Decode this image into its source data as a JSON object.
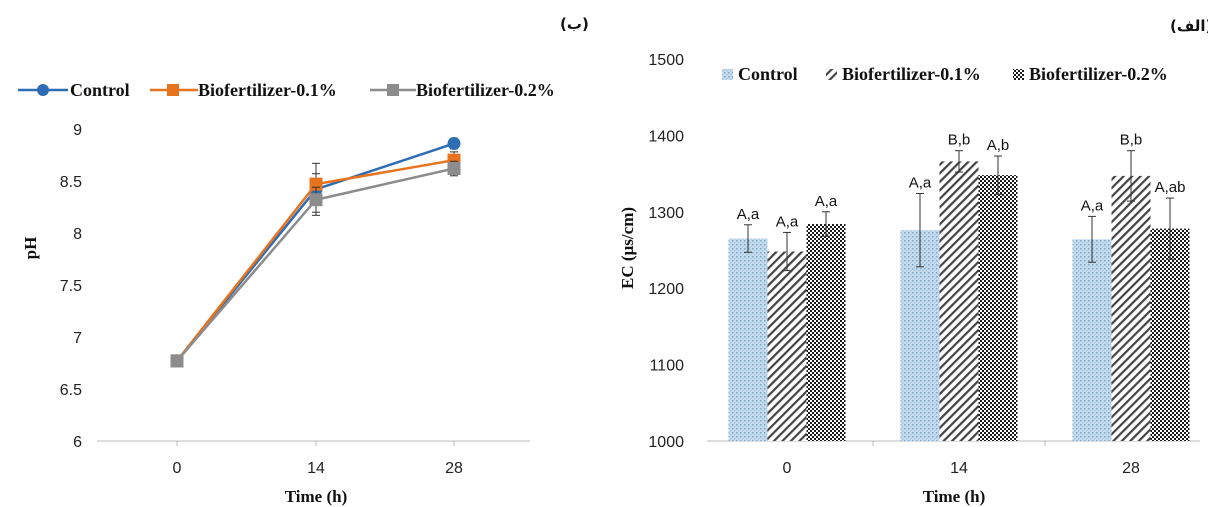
{
  "chart_data": [
    {
      "type": "line",
      "panel_label": "(ب)",
      "title": "",
      "xlabel": "Time (h)",
      "ylabel": "pH",
      "x": [
        "0",
        "14",
        "28"
      ],
      "ylim": [
        6,
        9
      ],
      "yticks": [
        "6",
        "6.5",
        "7",
        "7.5",
        "8",
        "8.5",
        "9"
      ],
      "grid": false,
      "legend_position": "top",
      "series": [
        {
          "name": "Control",
          "color": "#2e6db4",
          "marker": "circle",
          "values": [
            6.77,
            8.42,
            8.86
          ],
          "errors": [
            0,
            0.25,
            0.05
          ]
        },
        {
          "name": "Biofertilizer-0.1%",
          "color": "#e8731f",
          "marker": "square",
          "values": [
            6.77,
            8.47,
            8.7
          ],
          "errors": [
            0,
            0.1,
            0.08
          ]
        },
        {
          "name": "Biofertilizer-0.2%",
          "color": "#8c8c8c",
          "marker": "square",
          "values": [
            6.77,
            8.32,
            8.62
          ],
          "errors": [
            0,
            0.12,
            0.07
          ]
        }
      ]
    },
    {
      "type": "bar",
      "panel_label": "(الف)",
      "title": "",
      "xlabel": "Time (h)",
      "ylabel": "EC (µs/cm)",
      "categories": [
        "0",
        "14",
        "28"
      ],
      "ylim": [
        1000,
        1500
      ],
      "yticks": [
        "1000",
        "1100",
        "1200",
        "1300",
        "1400",
        "1500"
      ],
      "grid": false,
      "legend_position": "top",
      "series": [
        {
          "name": "Control",
          "fill": "dotted-lightblue",
          "values": [
            1265,
            1276,
            1264
          ],
          "errors": [
            18,
            48,
            30
          ],
          "letters": [
            "A,a",
            "A,a",
            "A,a"
          ]
        },
        {
          "name": "Biofertilizer-0.1%",
          "fill": "diagonal-hatch",
          "values": [
            1248,
            1366,
            1347
          ],
          "errors": [
            25,
            14,
            33
          ],
          "letters": [
            "A,a",
            "B,b",
            "B,b"
          ]
        },
        {
          "name": "Biofertilizer-0.2%",
          "fill": "checker-dark",
          "values": [
            1284,
            1348,
            1278
          ],
          "errors": [
            16,
            25,
            40
          ],
          "letters": [
            "A,a",
            "A,b",
            "A,ab"
          ]
        }
      ]
    }
  ]
}
